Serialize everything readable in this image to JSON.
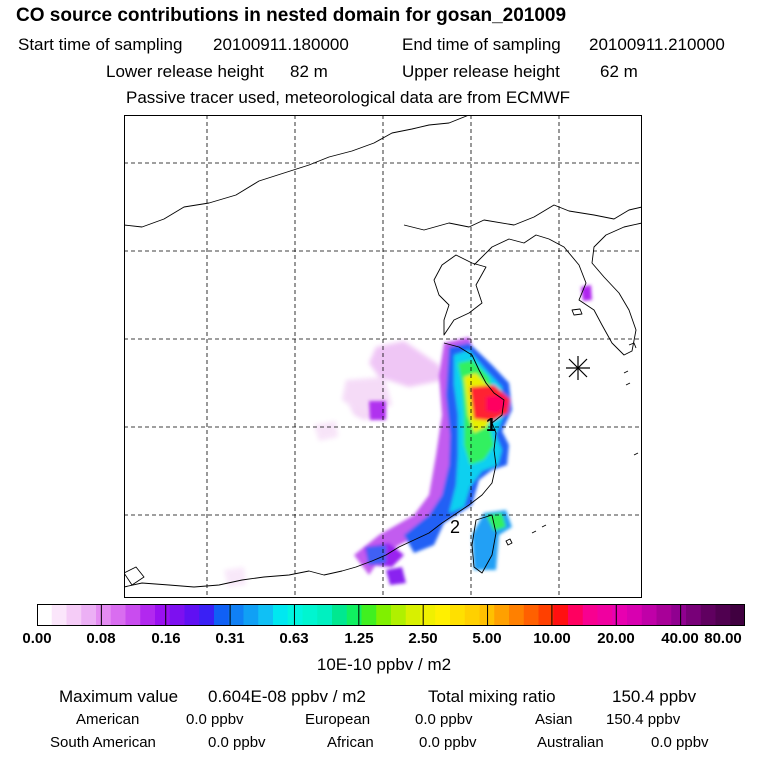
{
  "header": {
    "title": "CO  source contributions in nested domain for gosan_201009",
    "start_label": "Start time of sampling",
    "start_value": "20100911.180000",
    "end_label": "End time of sampling",
    "end_value": "20100911.210000",
    "lower_label": "Lower release height",
    "lower_value": "82 m",
    "upper_label": "Upper release height",
    "upper_value": "62 m",
    "tracer_note": "Passive tracer used, meteorological data are from ECMWF"
  },
  "map": {
    "markers": {
      "marker_1": "1",
      "marker_2": "2"
    },
    "receptor_symbol": "✳"
  },
  "colorbar": {
    "ticks": [
      "0.00",
      "0.08",
      "0.16",
      "0.31",
      "0.63",
      "1.25",
      "2.50",
      "5.00",
      "10.00",
      "20.00",
      "40.00",
      "80.00"
    ],
    "colors": [
      "#ffffff",
      "#fbe6fb",
      "#f5ccf7",
      "#ecb0f5",
      "#e48cf2",
      "#d96df0",
      "#c94cef",
      "#b228ef",
      "#9a10f0",
      "#7d10f0",
      "#6010f3",
      "#3a20f5",
      "#1060f5",
      "#1080f5",
      "#10a0f5",
      "#10c0f5",
      "#00e8f0",
      "#00f5e0",
      "#00f5d0",
      "#00f0c0",
      "#00e890",
      "#10f060",
      "#40f020",
      "#80f000",
      "#b0f000",
      "#d8f000",
      "#f0f000",
      "#fff000",
      "#ffe000",
      "#ffd000",
      "#ffc000",
      "#ffa000",
      "#ff8000",
      "#ff6000",
      "#ff4000",
      "#ff1010",
      "#ff0060",
      "#f80090",
      "#f000a0",
      "#e800b0",
      "#d800b0",
      "#c000a8",
      "#a80098",
      "#900090",
      "#780078",
      "#600060",
      "#500050",
      "#400040"
    ],
    "units": "10E-10 ppbv / m2"
  },
  "stats": {
    "max_label": "Maximum value",
    "max_value": "0.604E-08 ppbv / m2",
    "total_label": "Total mixing ratio",
    "total_value": "150.4 ppbv",
    "regions": [
      {
        "name": "American",
        "value": "0.0 ppbv"
      },
      {
        "name": "European",
        "value": "0.0 ppbv"
      },
      {
        "name": "Asian",
        "value": "150.4 ppbv"
      },
      {
        "name": "South American",
        "value": "0.0 ppbv"
      },
      {
        "name": "African",
        "value": "0.0 ppbv"
      },
      {
        "name": "Australian",
        "value": "0.0 ppbv"
      }
    ]
  }
}
